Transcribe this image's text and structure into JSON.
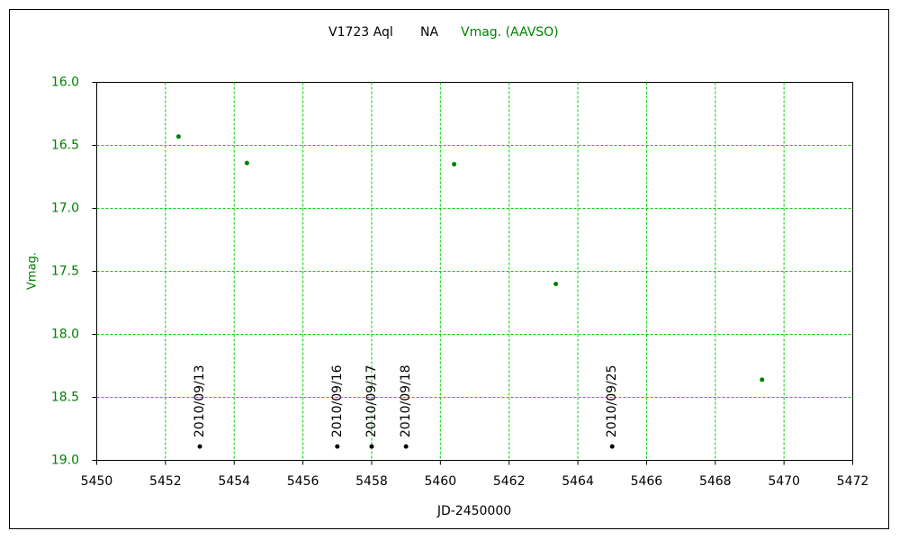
{
  "chart_data": {
    "type": "scatter",
    "title": "V1723 Aql",
    "subtitle": "NA",
    "x_label": "JD-2450000",
    "y_label": "Vmag.",
    "series": [
      {
        "name": "Vmag. (AAVSO)",
        "color": "#008000",
        "x": [
          5452.38,
          5454.37,
          5460.4,
          5463.36,
          5469.36
        ],
        "values": [
          16.43,
          16.64,
          16.65,
          17.6,
          18.36
        ]
      }
    ],
    "annotations": [
      {
        "x": 5453,
        "y": 18.89,
        "label": "2010/09/13"
      },
      {
        "x": 5457,
        "y": 18.89,
        "label": "2010/09/16"
      },
      {
        "x": 5458,
        "y": 18.89,
        "label": "2010/09/17"
      },
      {
        "x": 5459,
        "y": 18.89,
        "label": "2010/09/18"
      },
      {
        "x": 5465,
        "y": 18.89,
        "label": "2010/09/25"
      }
    ],
    "annotation_color": "#000000",
    "xlim": [
      5450,
      5472
    ],
    "xticks": [
      5450,
      5452,
      5454,
      5456,
      5458,
      5460,
      5462,
      5464,
      5466,
      5468,
      5470,
      5472
    ],
    "ylim": [
      16,
      19
    ],
    "y_inverted": true,
    "yticks": [
      {
        "value": 16,
        "label": "16.0"
      },
      16.5,
      {
        "value": 17,
        "label": "17.0"
      },
      17.5,
      {
        "value": 18,
        "label": "18.0"
      },
      18.5,
      {
        "value": 19,
        "label": "19.0"
      }
    ],
    "grid": true,
    "grid_color": "#00cc00"
  }
}
